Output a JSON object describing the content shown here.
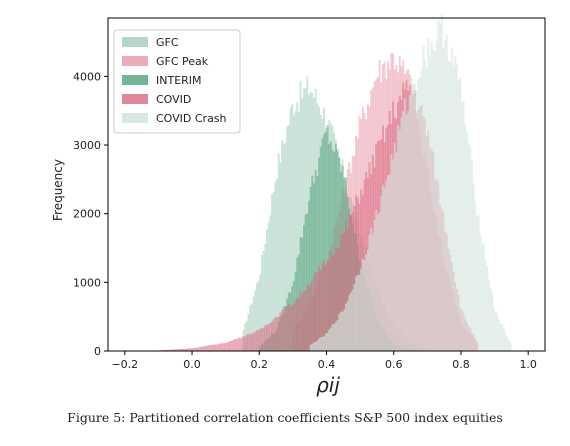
{
  "caption": "Figure 5: Partitioned correlation coefficients S&P 500 index equities",
  "chart_data": {
    "type": "histogram",
    "xlabel": "ρij",
    "ylabel": "Frequency",
    "xlim": [
      -0.25,
      1.05
    ],
    "ylim": [
      0,
      4850
    ],
    "xticks": [
      -0.2,
      0.0,
      0.2,
      0.4,
      0.6,
      0.8,
      1.0
    ],
    "xtick_labels": [
      "−0.2",
      "0.0",
      "0.2",
      "0.4",
      "0.6",
      "0.8",
      "1.0"
    ],
    "yticks": [
      0,
      1000,
      2000,
      3000,
      4000
    ],
    "ytick_labels": [
      "0",
      "1000",
      "2000",
      "3000",
      "4000"
    ],
    "legend_position": "top-left",
    "grid": false,
    "bin_width": 0.005,
    "series": [
      {
        "name": "GFC",
        "color": "#a8cfc0",
        "opacity": 0.55,
        "x": [
          0.15,
          0.2,
          0.25,
          0.3,
          0.35,
          0.4,
          0.45,
          0.5,
          0.55,
          0.6,
          0.65,
          0.7
        ],
        "y": [
          250,
          1100,
          2600,
          3600,
          3850,
          3400,
          2600,
          1700,
          900,
          400,
          120,
          30
        ]
      },
      {
        "name": "GFC Peak",
        "color": "#e68fa0",
        "opacity": 0.45,
        "x": [
          0.3,
          0.35,
          0.4,
          0.45,
          0.5,
          0.55,
          0.6,
          0.65,
          0.7,
          0.75,
          0.8,
          0.85
        ],
        "y": [
          300,
          700,
          1300,
          2300,
          3300,
          4050,
          4300,
          3900,
          2600,
          1300,
          400,
          100
        ]
      },
      {
        "name": "INTERIM",
        "color": "#5da883",
        "opacity": 0.55,
        "x": [
          0.2,
          0.25,
          0.3,
          0.35,
          0.4,
          0.45,
          0.5,
          0.55,
          0.6,
          0.65
        ],
        "y": [
          60,
          300,
          1000,
          2300,
          3200,
          2600,
          1300,
          450,
          100,
          20
        ]
      },
      {
        "name": "COVID",
        "color": "#d9677e",
        "opacity": 0.5,
        "x": [
          -0.1,
          0.0,
          0.1,
          0.2,
          0.3,
          0.4,
          0.45,
          0.5,
          0.55,
          0.6,
          0.65,
          0.7,
          0.75,
          0.8,
          0.85
        ],
        "y": [
          10,
          40,
          120,
          300,
          700,
          1300,
          1700,
          2300,
          2900,
          3500,
          3900,
          3200,
          1900,
          600,
          100
        ]
      },
      {
        "name": "COVID Crash",
        "color": "#d5e6df",
        "opacity": 0.6,
        "x": [
          0.35,
          0.4,
          0.45,
          0.5,
          0.55,
          0.6,
          0.65,
          0.7,
          0.75,
          0.8,
          0.85,
          0.9,
          0.95
        ],
        "y": [
          80,
          250,
          600,
          1200,
          2000,
          2900,
          3800,
          4400,
          4700,
          3800,
          2000,
          600,
          80
        ]
      }
    ]
  }
}
